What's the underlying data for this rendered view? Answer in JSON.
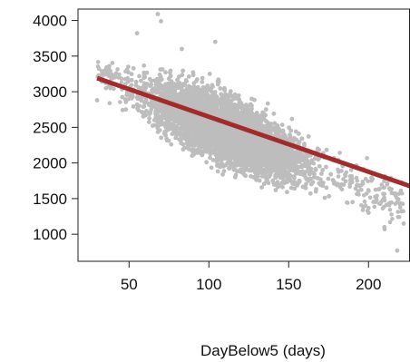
{
  "chart_data": {
    "type": "scatter",
    "title": "",
    "xlabel": "DayBelow5 (days)",
    "ylabel": "",
    "xlim": [
      18,
      226
    ],
    "ylim": [
      620,
      4160
    ],
    "x_ticks": [
      50,
      100,
      150,
      200
    ],
    "y_ticks": [
      1000,
      1500,
      2000,
      2500,
      3000,
      3500,
      4000
    ],
    "grid": false,
    "legend": "none",
    "point_color": "#bdbdbd",
    "line_color": "#a52a2a",
    "regression_line": {
      "x": [
        30,
        226
      ],
      "y": [
        3190,
        1675
      ]
    },
    "point_cloud": {
      "x_range": [
        30,
        222
      ],
      "y_range": [
        750,
        4100
      ],
      "trend": "negative"
    },
    "sample_points": [
      {
        "x": 55,
        "y": 3820
      },
      {
        "x": 68,
        "y": 4090
      },
      {
        "x": 70,
        "y": 3990
      },
      {
        "x": 104,
        "y": 3700
      },
      {
        "x": 83,
        "y": 3600
      },
      {
        "x": 30,
        "y": 2880
      },
      {
        "x": 48,
        "y": 2750
      },
      {
        "x": 218,
        "y": 770
      },
      {
        "x": 222,
        "y": 1150
      },
      {
        "x": 210,
        "y": 1100
      },
      {
        "x": 200,
        "y": 1300
      },
      {
        "x": 190,
        "y": 1450
      }
    ]
  }
}
